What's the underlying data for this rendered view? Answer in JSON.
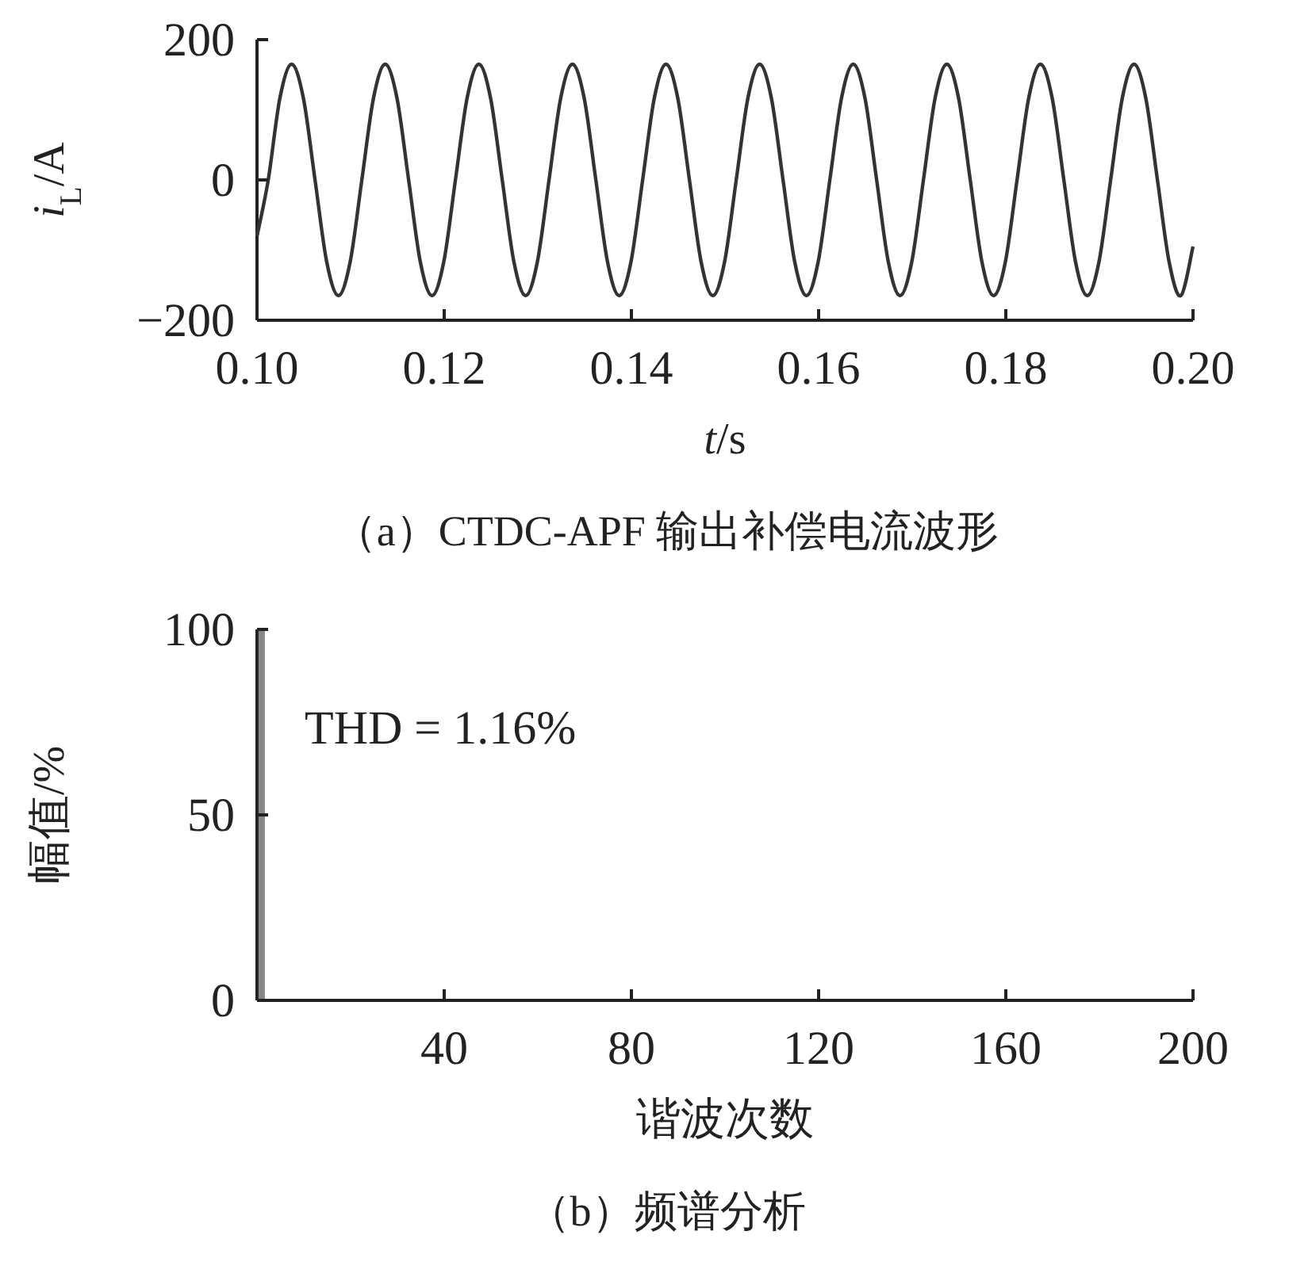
{
  "chart_data": [
    {
      "type": "line",
      "color": "#333333",
      "x": [
        0.1,
        0.1012,
        0.10245,
        0.1037,
        0.10495,
        0.1062,
        0.10745,
        0.1087,
        0.10995,
        0.1112,
        0.11245,
        0.1137,
        0.11495,
        0.1162,
        0.11745,
        0.1187,
        0.11995,
        0.1212,
        0.12245,
        0.1237,
        0.12495,
        0.1262,
        0.12745,
        0.1287,
        0.12995,
        0.1312,
        0.13245,
        0.1337,
        0.13495,
        0.1362,
        0.13745,
        0.1387,
        0.13995,
        0.1412,
        0.14245,
        0.1437,
        0.14495,
        0.1462,
        0.14745,
        0.1487,
        0.14995,
        0.1512,
        0.15245,
        0.1537,
        0.15495,
        0.1562,
        0.15745,
        0.1587,
        0.15995,
        0.1612,
        0.16245,
        0.1637,
        0.16495,
        0.1662,
        0.16745,
        0.1687,
        0.16995,
        0.1712,
        0.17245,
        0.1737,
        0.17495,
        0.1762,
        0.17745,
        0.1787,
        0.17995,
        0.1812,
        0.18245,
        0.1837,
        0.18495,
        0.1862,
        0.18745,
        0.1887,
        0.18995,
        0.1912,
        0.19245,
        0.1937,
        0.19495,
        0.1962,
        0.19745,
        0.1987,
        0.2
      ],
      "values": [
        -80,
        0,
        117,
        165,
        117,
        0,
        -117,
        -165,
        -117,
        0,
        117,
        165,
        117,
        0,
        -117,
        -165,
        -117,
        0,
        117,
        165,
        117,
        0,
        -117,
        -165,
        -117,
        0,
        117,
        165,
        117,
        0,
        -117,
        -165,
        -117,
        0,
        117,
        165,
        117,
        0,
        -117,
        -165,
        -117,
        0,
        117,
        165,
        117,
        0,
        -117,
        -165,
        -117,
        0,
        117,
        165,
        117,
        0,
        -117,
        -165,
        -117,
        0,
        117,
        165,
        117,
        0,
        -117,
        -165,
        -117,
        0,
        117,
        165,
        117,
        0,
        -117,
        -165,
        -117,
        0,
        117,
        165,
        117,
        0,
        -117,
        -165,
        -95
      ],
      "xlim": [
        0.1,
        0.2
      ],
      "xticks": [
        {
          "value": 0.1,
          "label": "0.10"
        },
        0.12,
        0.14,
        0.16,
        0.18,
        {
          "value": 0.2,
          "label": "0.20"
        }
      ],
      "ylim": [
        -200,
        200
      ],
      "yticks": [
        {
          "value": -200,
          "label": "−200"
        },
        0,
        200
      ],
      "xlabel": "*t*/s",
      "ylabel": "*i*$_{L}$/A",
      "annotations": [
        "（a）CTDC-APF 输出补偿电流波形"
      ]
    },
    {
      "type": "bar",
      "color": "#888888",
      "x": [
        1
      ],
      "values": [
        100
      ],
      "xlim": [
        0,
        200
      ],
      "xticks": [
        40,
        80,
        120,
        160,
        200
      ],
      "ylim": [
        0,
        100
      ],
      "yticks": [
        0,
        50,
        100
      ],
      "xlabel": "谐波次数",
      "ylabel": "幅值/%",
      "annotations": [
        "THD = 1.16%",
        "（b）频谱分析"
      ]
    }
  ]
}
